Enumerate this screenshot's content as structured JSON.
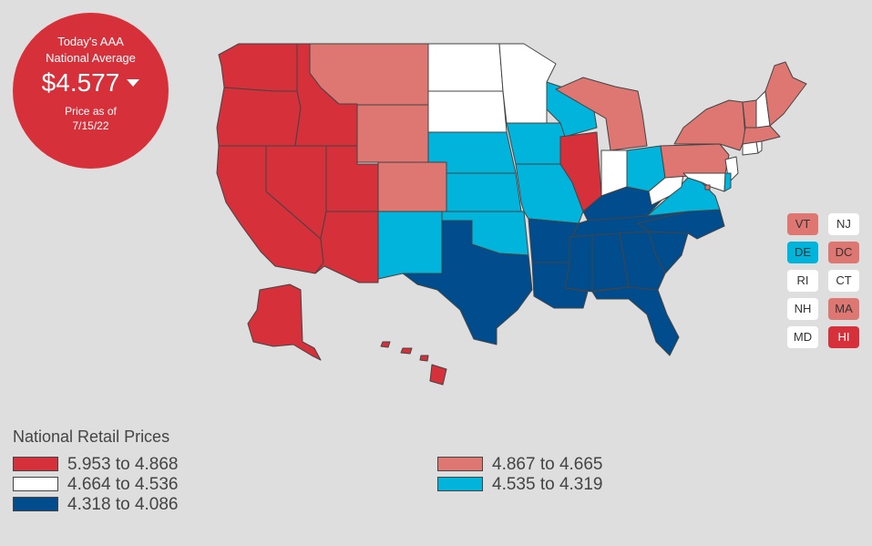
{
  "colors": {
    "red": "#d6303a",
    "pink": "#de7672",
    "white": "#ffffff",
    "cyan": "#00b4dc",
    "navy": "#004c8c"
  },
  "badge": {
    "title_line1": "Today's AAA",
    "title_line2": "National Average",
    "price": "$4.577",
    "as_of_line1": "Price as of",
    "as_of_line2": "7/15/22"
  },
  "states": {
    "WA": "red",
    "OR": "red",
    "CA": "red",
    "ID": "red",
    "NV": "red",
    "UT": "red",
    "AZ": "red",
    "AK": "red",
    "HI": "red",
    "IL": "red",
    "MT": "pink",
    "WY": "pink",
    "CO": "pink",
    "MI": "pink",
    "NY": "pink",
    "PA": "pink",
    "ME": "pink",
    "VT": "pink",
    "MA": "pink",
    "DC": "pink",
    "ND": "white",
    "MN": "white",
    "SD": "white",
    "IN": "white",
    "WV": "white",
    "NH": "white",
    "NJ": "white",
    "RI": "white",
    "CT": "white",
    "MD": "white",
    "NE": "cyan",
    "KS": "cyan",
    "IA": "cyan",
    "MO": "cyan",
    "WI": "cyan",
    "OH": "cyan",
    "VA": "cyan",
    "NM": "cyan",
    "OK": "cyan",
    "DE": "cyan",
    "TX": "navy",
    "AR": "navy",
    "LA": "navy",
    "MS": "navy",
    "AL": "navy",
    "GA": "navy",
    "FL": "navy",
    "SC": "navy",
    "NC": "navy",
    "TN": "navy",
    "KY": "navy"
  },
  "small_states": [
    {
      "code": "VT",
      "color": "pink"
    },
    {
      "code": "NJ",
      "color": "white"
    },
    {
      "code": "DE",
      "color": "cyan"
    },
    {
      "code": "DC",
      "color": "pink"
    },
    {
      "code": "RI",
      "color": "white"
    },
    {
      "code": "CT",
      "color": "white"
    },
    {
      "code": "NH",
      "color": "white"
    },
    {
      "code": "MA",
      "color": "pink"
    },
    {
      "code": "MD",
      "color": "white"
    },
    {
      "code": "HI",
      "color": "red"
    }
  ],
  "legend": {
    "title": "National Retail Prices",
    "items": [
      {
        "label": "5.953 to 4.868",
        "color": "red"
      },
      {
        "label": "4.664 to 4.536",
        "color": "white"
      },
      {
        "label": "4.318 to 4.086",
        "color": "navy"
      },
      {
        "label": "4.867 to 4.665",
        "color": "pink"
      },
      {
        "label": "4.535 to 4.319",
        "color": "cyan"
      }
    ]
  }
}
